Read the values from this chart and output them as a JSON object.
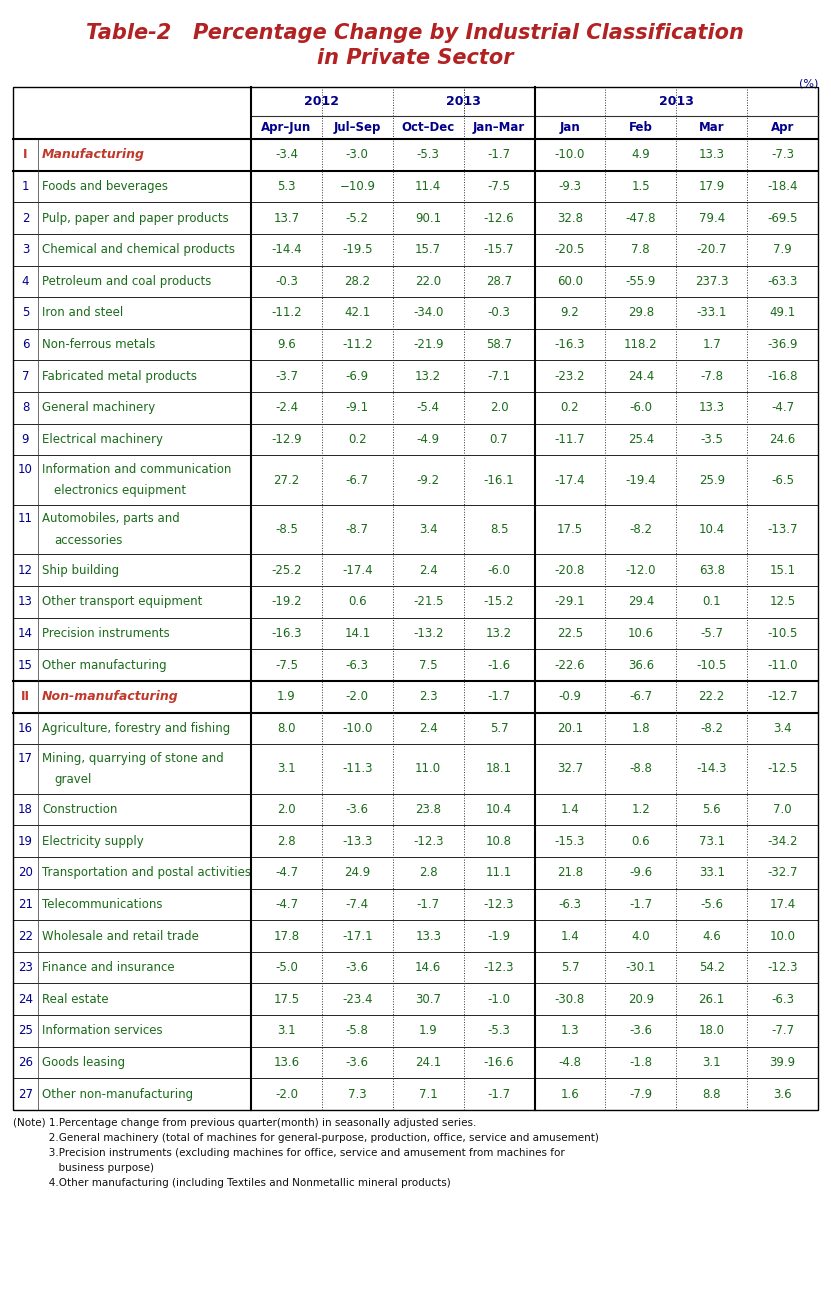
{
  "title_line1": "Table-2   Percentage Change by Industrial Classification",
  "title_line2": "in Private Sector",
  "title_color": "#b22222",
  "percent_label": "(%)",
  "header_years_row": [
    "",
    "2012",
    "",
    "",
    "2013",
    "2013",
    "",
    "",
    ""
  ],
  "header_periods_row": [
    "",
    "Apr–Jun",
    "Jul–Sep",
    "Oct–Dec",
    "Jan–Mar",
    "Jan",
    "Feb",
    "Mar",
    "Apr"
  ],
  "rows": [
    {
      "num": "I",
      "label": "Manufacturing",
      "values": [
        "-3.4",
        "-3.0",
        "-5.3",
        "-1.7",
        "-10.0",
        "4.9",
        "13.3",
        "-7.3"
      ],
      "style": "section",
      "multiline": false
    },
    {
      "num": "1",
      "label": "Foods and beverages",
      "values": [
        "5.3",
        "−10.9",
        "11.4",
        "-7.5",
        "-9.3",
        "1.5",
        "17.9",
        "-18.4"
      ],
      "style": "normal",
      "multiline": false
    },
    {
      "num": "2",
      "label": "Pulp, paper and paper products",
      "values": [
        "13.7",
        "-5.2",
        "90.1",
        "-12.6",
        "32.8",
        "-47.8",
        "79.4",
        "-69.5"
      ],
      "style": "normal",
      "multiline": false
    },
    {
      "num": "3",
      "label": "Chemical and chemical products",
      "values": [
        "-14.4",
        "-19.5",
        "15.7",
        "-15.7",
        "-20.5",
        "7.8",
        "-20.7",
        "7.9"
      ],
      "style": "normal",
      "multiline": false
    },
    {
      "num": "4",
      "label": "Petroleum and coal products",
      "values": [
        "-0.3",
        "28.2",
        "22.0",
        "28.7",
        "60.0",
        "-55.9",
        "237.3",
        "-63.3"
      ],
      "style": "normal",
      "multiline": false
    },
    {
      "num": "5",
      "label": "Iron and steel",
      "values": [
        "-11.2",
        "42.1",
        "-34.0",
        "-0.3",
        "9.2",
        "29.8",
        "-33.1",
        "49.1"
      ],
      "style": "normal",
      "multiline": false
    },
    {
      "num": "6",
      "label": "Non-ferrous metals",
      "values": [
        "9.6",
        "-11.2",
        "-21.9",
        "58.7",
        "-16.3",
        "118.2",
        "1.7",
        "-36.9"
      ],
      "style": "normal",
      "multiline": false
    },
    {
      "num": "7",
      "label": "Fabricated metal products",
      "values": [
        "-3.7",
        "-6.9",
        "13.2",
        "-7.1",
        "-23.2",
        "24.4",
        "-7.8",
        "-16.8"
      ],
      "style": "normal",
      "multiline": false
    },
    {
      "num": "8",
      "label": "General machinery",
      "values": [
        "-2.4",
        "-9.1",
        "-5.4",
        "2.0",
        "0.2",
        "-6.0",
        "13.3",
        "-4.7"
      ],
      "style": "normal",
      "multiline": false
    },
    {
      "num": "9",
      "label": "Electrical machinery",
      "values": [
        "-12.9",
        "0.2",
        "-4.9",
        "0.7",
        "-11.7",
        "25.4",
        "-3.5",
        "24.6"
      ],
      "style": "normal",
      "multiline": false
    },
    {
      "num": "10",
      "label": "Information and communication\nelectronics equipment",
      "values": [
        "27.2",
        "-6.7",
        "-9.2",
        "-16.1",
        "-17.4",
        "-19.4",
        "25.9",
        "-6.5"
      ],
      "style": "normal",
      "multiline": true
    },
    {
      "num": "11",
      "label": "Automobiles, parts and\naccessories",
      "values": [
        "-8.5",
        "-8.7",
        "3.4",
        "8.5",
        "17.5",
        "-8.2",
        "10.4",
        "-13.7"
      ],
      "style": "normal",
      "multiline": true
    },
    {
      "num": "12",
      "label": "Ship building",
      "values": [
        "-25.2",
        "-17.4",
        "2.4",
        "-6.0",
        "-20.8",
        "-12.0",
        "63.8",
        "15.1"
      ],
      "style": "normal",
      "multiline": false
    },
    {
      "num": "13",
      "label": "Other transport equipment",
      "values": [
        "-19.2",
        "0.6",
        "-21.5",
        "-15.2",
        "-29.1",
        "29.4",
        "0.1",
        "12.5"
      ],
      "style": "normal",
      "multiline": false
    },
    {
      "num": "14",
      "label": "Precision instruments",
      "values": [
        "-16.3",
        "14.1",
        "-13.2",
        "13.2",
        "22.5",
        "10.6",
        "-5.7",
        "-10.5"
      ],
      "style": "normal",
      "multiline": false
    },
    {
      "num": "15",
      "label": "Other manufacturing",
      "values": [
        "-7.5",
        "-6.3",
        "7.5",
        "-1.6",
        "-22.6",
        "36.6",
        "-10.5",
        "-11.0"
      ],
      "style": "normal",
      "multiline": false
    },
    {
      "num": "II",
      "label": "Non-manufacturing",
      "values": [
        "1.9",
        "-2.0",
        "2.3",
        "-1.7",
        "-0.9",
        "-6.7",
        "22.2",
        "-12.7"
      ],
      "style": "section",
      "multiline": false
    },
    {
      "num": "16",
      "label": "Agriculture, forestry and fishing",
      "values": [
        "8.0",
        "-10.0",
        "2.4",
        "5.7",
        "20.1",
        "1.8",
        "-8.2",
        "3.4"
      ],
      "style": "normal",
      "multiline": false
    },
    {
      "num": "17",
      "label": "Mining, quarrying of stone and\ngravel",
      "values": [
        "3.1",
        "-11.3",
        "11.0",
        "18.1",
        "32.7",
        "-8.8",
        "-14.3",
        "-12.5"
      ],
      "style": "normal",
      "multiline": true
    },
    {
      "num": "18",
      "label": "Construction",
      "values": [
        "2.0",
        "-3.6",
        "23.8",
        "10.4",
        "1.4",
        "1.2",
        "5.6",
        "7.0"
      ],
      "style": "normal",
      "multiline": false
    },
    {
      "num": "19",
      "label": "Electricity supply",
      "values": [
        "2.8",
        "-13.3",
        "-12.3",
        "10.8",
        "-15.3",
        "0.6",
        "73.1",
        "-34.2"
      ],
      "style": "normal",
      "multiline": false
    },
    {
      "num": "20",
      "label": "Transportation and postal activities",
      "values": [
        "-4.7",
        "24.9",
        "2.8",
        "11.1",
        "21.8",
        "-9.6",
        "33.1",
        "-32.7"
      ],
      "style": "normal",
      "multiline": false
    },
    {
      "num": "21",
      "label": "Telecommunications",
      "values": [
        "-4.7",
        "-7.4",
        "-1.7",
        "-12.3",
        "-6.3",
        "-1.7",
        "-5.6",
        "17.4"
      ],
      "style": "normal",
      "multiline": false
    },
    {
      "num": "22",
      "label": "Wholesale and retail trade",
      "values": [
        "17.8",
        "-17.1",
        "13.3",
        "-1.9",
        "1.4",
        "4.0",
        "4.6",
        "10.0"
      ],
      "style": "normal",
      "multiline": false
    },
    {
      "num": "23",
      "label": "Finance and insurance",
      "values": [
        "-5.0",
        "-3.6",
        "14.6",
        "-12.3",
        "5.7",
        "-30.1",
        "54.2",
        "-12.3"
      ],
      "style": "normal",
      "multiline": false
    },
    {
      "num": "24",
      "label": "Real estate",
      "values": [
        "17.5",
        "-23.4",
        "30.7",
        "-1.0",
        "-30.8",
        "20.9",
        "26.1",
        "-6.3"
      ],
      "style": "normal",
      "multiline": false
    },
    {
      "num": "25",
      "label": "Information services",
      "values": [
        "3.1",
        "-5.8",
        "1.9",
        "-5.3",
        "1.3",
        "-3.6",
        "18.0",
        "-7.7"
      ],
      "style": "normal",
      "multiline": false
    },
    {
      "num": "26",
      "label": "Goods leasing",
      "values": [
        "13.6",
        "-3.6",
        "24.1",
        "-16.6",
        "-4.8",
        "-1.8",
        "3.1",
        "39.9"
      ],
      "style": "normal",
      "multiline": false
    },
    {
      "num": "27",
      "label": "Other non-manufacturing",
      "values": [
        "-2.0",
        "7.3",
        "7.1",
        "-1.7",
        "1.6",
        "-7.9",
        "8.8",
        "3.6"
      ],
      "style": "normal",
      "multiline": false
    }
  ],
  "notes": [
    "(Note) 1.Percentage change from previous quarter(month) in seasonally adjusted series.",
    "           2.General machinery (total of machines for general-purpose, production, office, service and amusement)",
    "           3.Precision instruments (excluding machines for office, service and amusement from machines for",
    "              business purpose)",
    "           4.Other manufacturing (including Textiles and Nonmetallic mineral products)"
  ],
  "section_color": "#c0392b",
  "normal_num_color": "#00008b",
  "normal_label_color": "#1a6b1a",
  "value_color": "#1a6b1a",
  "header_color": "#00008b",
  "border_color": "#333333",
  "thick_border_color": "#000000",
  "bg_color": "#ffffff"
}
